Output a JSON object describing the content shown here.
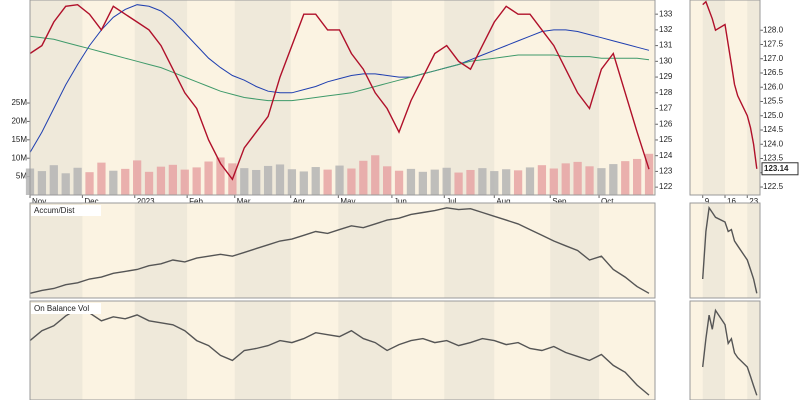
{
  "chart_data": [
    {
      "type": "line",
      "x": [
        0,
        1,
        2,
        3,
        4,
        5,
        6,
        7,
        8,
        9,
        10,
        11,
        12,
        13,
        14,
        15,
        16,
        17,
        18,
        19,
        20,
        21,
        22,
        23,
        24,
        25,
        26,
        27,
        28,
        29,
        30,
        31,
        32,
        33,
        34,
        35,
        36,
        37,
        38,
        39,
        40,
        41,
        42,
        43,
        44,
        45,
        46,
        47,
        48,
        49,
        50,
        51,
        52
      ],
      "xlim": [
        0,
        52.5
      ],
      "xticks": [
        {
          "value": 0,
          "label": "Nov"
        },
        {
          "value": 4.4,
          "label": "Dec"
        },
        {
          "value": 8.8,
          "label": "2023"
        },
        {
          "value": 13.2,
          "label": "Feb"
        },
        {
          "value": 17.2,
          "label": "Mar"
        },
        {
          "value": 21.9,
          "label": "Apr"
        },
        {
          "value": 25.9,
          "label": "May"
        },
        {
          "value": 30.4,
          "label": "Jun"
        },
        {
          "value": 34.8,
          "label": "Jul"
        },
        {
          "value": 39,
          "label": "Aug"
        },
        {
          "value": 43.7,
          "label": "Sep"
        },
        {
          "value": 47.8,
          "label": "Oct"
        }
      ],
      "ylim": [
        121.5,
        133.9
      ],
      "yticks": [
        122,
        123,
        124,
        125,
        126,
        127,
        128,
        129,
        130,
        131,
        132,
        133
      ],
      "y2lim": [
        0,
        53000000
      ],
      "y2ticks": [
        {
          "value": 5000000,
          "label": "5M"
        },
        {
          "value": 10000000,
          "label": "10M"
        },
        {
          "value": 15000000,
          "label": "15M"
        },
        {
          "value": 20000000,
          "label": "20M"
        },
        {
          "value": 25000000,
          "label": "25M"
        }
      ],
      "series": [
        {
          "type": "bar",
          "axis": "y2",
          "color": "#b4b4b4",
          "down_color": "#e6a3a3",
          "values": [
            7200000,
            6500000,
            8100000,
            5900000,
            7400000,
            6200000,
            8800000,
            6600000,
            7100000,
            9400000,
            6300000,
            7700000,
            8200000,
            6900000,
            7500000,
            9100000,
            10200000,
            8600000,
            7300000,
            6800000,
            7900000,
            8300000,
            7000000,
            6400000,
            7600000,
            6900000,
            8000000,
            7200000,
            9300000,
            10800000,
            7800000,
            6600000,
            7100000,
            6300000,
            6900000,
            7400000,
            6100000,
            6800000,
            7300000,
            6500000,
            7000000,
            6700000,
            7500000,
            8100000,
            7200000,
            8600000,
            9000000,
            7800000,
            7300000,
            8400000,
            9200000,
            9800000,
            11200000
          ]
        },
        {
          "type": "line",
          "color": "#1f3fb0",
          "values": [
            124.2,
            125.5,
            127,
            128.5,
            129.8,
            131,
            132,
            132.8,
            133.3,
            133.6,
            133.5,
            133.2,
            132.6,
            131.8,
            131,
            130.2,
            129.6,
            129.1,
            128.8,
            128.4,
            128.1,
            128,
            128,
            128.2,
            128.4,
            128.7,
            128.9,
            129.1,
            129.2,
            129.2,
            129.1,
            129,
            129,
            129.2,
            129.4,
            129.6,
            129.8,
            130.1,
            130.4,
            130.7,
            131,
            131.3,
            131.6,
            131.9,
            132,
            132,
            131.9,
            131.7,
            131.5,
            131.3,
            131.1,
            130.9,
            130.7
          ]
        },
        {
          "type": "line",
          "color": "#3f9a6a",
          "values": [
            131.6,
            131.5,
            131.4,
            131.2,
            131,
            130.8,
            130.6,
            130.4,
            130.2,
            130,
            129.8,
            129.6,
            129.3,
            129,
            128.7,
            128.4,
            128.1,
            127.9,
            127.7,
            127.6,
            127.5,
            127.5,
            127.5,
            127.6,
            127.7,
            127.8,
            127.9,
            128,
            128.2,
            128.4,
            128.6,
            128.8,
            129,
            129.2,
            129.4,
            129.6,
            129.8,
            130,
            130.1,
            130.2,
            130.3,
            130.4,
            130.4,
            130.4,
            130.4,
            130.3,
            130.3,
            130.3,
            130.2,
            130.2,
            130.2,
            130.2,
            130.1
          ]
        },
        {
          "type": "line",
          "color": "#b0102a",
          "values": [
            130.5,
            131,
            132.5,
            133.5,
            133.6,
            133,
            132,
            133.5,
            133,
            132.5,
            132,
            131,
            129.5,
            128,
            127,
            125,
            123.5,
            122.5,
            124.5,
            125.5,
            126.5,
            129,
            131,
            133,
            133,
            132,
            132,
            130.5,
            129.5,
            128,
            127,
            125.5,
            127.5,
            129,
            130.5,
            131,
            130,
            129.5,
            131,
            132.5,
            133.5,
            133,
            133,
            132,
            131,
            129.5,
            128,
            127,
            129.5,
            130.5,
            128,
            125.5,
            123.14
          ]
        }
      ]
    },
    {
      "type": "line",
      "title": "Accum/Dist",
      "x": [
        0,
        1,
        2,
        3,
        4,
        5,
        6,
        7,
        8,
        9,
        10,
        11,
        12,
        13,
        14,
        15,
        16,
        17,
        18,
        19,
        20,
        21,
        22,
        23,
        24,
        25,
        26,
        27,
        28,
        29,
        30,
        31,
        32,
        33,
        34,
        35,
        36,
        37,
        38,
        39,
        40,
        41,
        42,
        43,
        44,
        45,
        46,
        47,
        48,
        49,
        50,
        51,
        52
      ],
      "xlim": [
        0,
        52.5
      ],
      "ylim": [
        0,
        100
      ],
      "series": [
        {
          "type": "line",
          "color": "#555555",
          "values": [
            5,
            8,
            10,
            14,
            16,
            20,
            22,
            26,
            28,
            30,
            34,
            36,
            40,
            38,
            42,
            44,
            46,
            44,
            48,
            52,
            56,
            60,
            62,
            66,
            70,
            68,
            72,
            76,
            74,
            78,
            82,
            84,
            88,
            90,
            92,
            95,
            93,
            94,
            90,
            86,
            82,
            78,
            72,
            66,
            60,
            55,
            50,
            40,
            44,
            30,
            22,
            12,
            5
          ]
        }
      ]
    },
    {
      "type": "line",
      "title": "On Balance Vol",
      "x": [
        0,
        1,
        2,
        3,
        4,
        5,
        6,
        7,
        8,
        9,
        10,
        11,
        12,
        13,
        14,
        15,
        16,
        17,
        18,
        19,
        20,
        21,
        22,
        23,
        24,
        25,
        26,
        27,
        28,
        29,
        30,
        31,
        32,
        33,
        34,
        35,
        36,
        37,
        38,
        39,
        40,
        41,
        42,
        43,
        44,
        45,
        46,
        47,
        48,
        49,
        50,
        51,
        52
      ],
      "xlim": [
        0,
        52.5
      ],
      "ylim": [
        0,
        100
      ],
      "series": [
        {
          "type": "line",
          "color": "#555555",
          "values": [
            60,
            70,
            75,
            85,
            92,
            88,
            80,
            84,
            82,
            86,
            80,
            78,
            76,
            70,
            60,
            55,
            45,
            40,
            50,
            52,
            55,
            60,
            58,
            62,
            68,
            66,
            64,
            70,
            62,
            58,
            50,
            56,
            60,
            62,
            58,
            60,
            55,
            58,
            62,
            60,
            56,
            58,
            52,
            50,
            54,
            48,
            44,
            40,
            46,
            35,
            28,
            15,
            5
          ]
        }
      ]
    },
    {
      "type": "line",
      "last_value_label": true,
      "x": [
        9,
        10,
        11,
        12,
        13,
        16,
        17,
        18,
        19,
        20,
        23,
        24,
        25,
        26
      ],
      "xlim": [
        5,
        27
      ],
      "xticks": [
        9,
        16,
        23
      ],
      "ylim": [
        122.22,
        129.06
      ],
      "yticks": [
        122.5,
        {
          "value": 123,
          "label": "123.0"
        },
        123.5,
        {
          "value": 124,
          "label": "124.0"
        },
        124.5,
        {
          "value": 125,
          "label": "125.0"
        },
        125.5,
        {
          "value": 126,
          "label": "126.0"
        },
        126.5,
        {
          "value": 127,
          "label": "127.0"
        },
        127.5,
        {
          "value": 128,
          "label": "128.0"
        }
      ],
      "series": [
        {
          "type": "line",
          "color": "#b0102a",
          "values": [
            128.9,
            129,
            128.7,
            128.4,
            128,
            128.2,
            127.5,
            126.8,
            126.1,
            125.7,
            125,
            124.58,
            124,
            123.14
          ]
        }
      ]
    },
    {
      "type": "line",
      "x": [
        9,
        10,
        11,
        12,
        13,
        16,
        17,
        18,
        19,
        20,
        23,
        24,
        25,
        26
      ],
      "xlim": [
        5,
        27
      ],
      "ylim": [
        0,
        100
      ],
      "series": [
        {
          "type": "line",
          "color": "#555555",
          "values": [
            20,
            70,
            95,
            90,
            85,
            80,
            70,
            72,
            60,
            55,
            40,
            30,
            20,
            5
          ]
        }
      ]
    },
    {
      "type": "line",
      "x": [
        9,
        10,
        11,
        12,
        13,
        16,
        17,
        18,
        19,
        20,
        23,
        24,
        25,
        26
      ],
      "xlim": [
        5,
        27
      ],
      "ylim": [
        -5,
        100
      ],
      "series": [
        {
          "type": "line",
          "color": "#555555",
          "values": [
            30,
            60,
            85,
            70,
            90,
            75,
            55,
            60,
            45,
            40,
            30,
            20,
            10,
            0
          ]
        }
      ]
    }
  ]
}
